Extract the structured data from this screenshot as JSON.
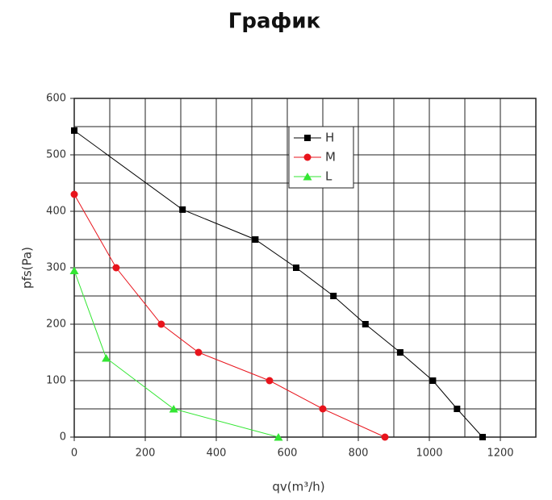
{
  "chart_data": {
    "type": "line",
    "title": "График",
    "x_label": "qv(m³/h)",
    "y_label": "pfs(Pa)",
    "xlim": [
      0,
      1300
    ],
    "ylim": [
      0,
      600
    ],
    "xticks": [
      0,
      200,
      400,
      600,
      800,
      1000,
      1200
    ],
    "yticks": [
      0,
      100,
      200,
      300,
      400,
      500,
      600
    ],
    "minor_xticks": [
      100,
      300,
      500,
      700,
      900,
      1100,
      1300
    ],
    "minor_yticks": [
      50,
      150,
      250,
      350,
      450,
      550
    ],
    "grid": true,
    "legend": "upper center",
    "series": [
      {
        "name": "H",
        "color": "#000000",
        "marker": "square",
        "x": [
          0,
          305,
          510,
          625,
          730,
          820,
          918,
          1010,
          1078,
          1150
        ],
        "values": [
          543,
          403,
          350,
          300,
          250,
          200,
          150,
          100,
          50,
          0
        ]
      },
      {
        "name": "M",
        "color": "#e8141c",
        "marker": "circle",
        "x": [
          0,
          118,
          245,
          350,
          550,
          700,
          875
        ],
        "values": [
          430,
          300,
          200,
          150,
          100,
          50,
          0
        ]
      },
      {
        "name": "L",
        "color": "#33e633",
        "marker": "triangle",
        "x": [
          0,
          90,
          280,
          575
        ],
        "values": [
          295,
          140,
          50,
          0
        ]
      }
    ]
  }
}
